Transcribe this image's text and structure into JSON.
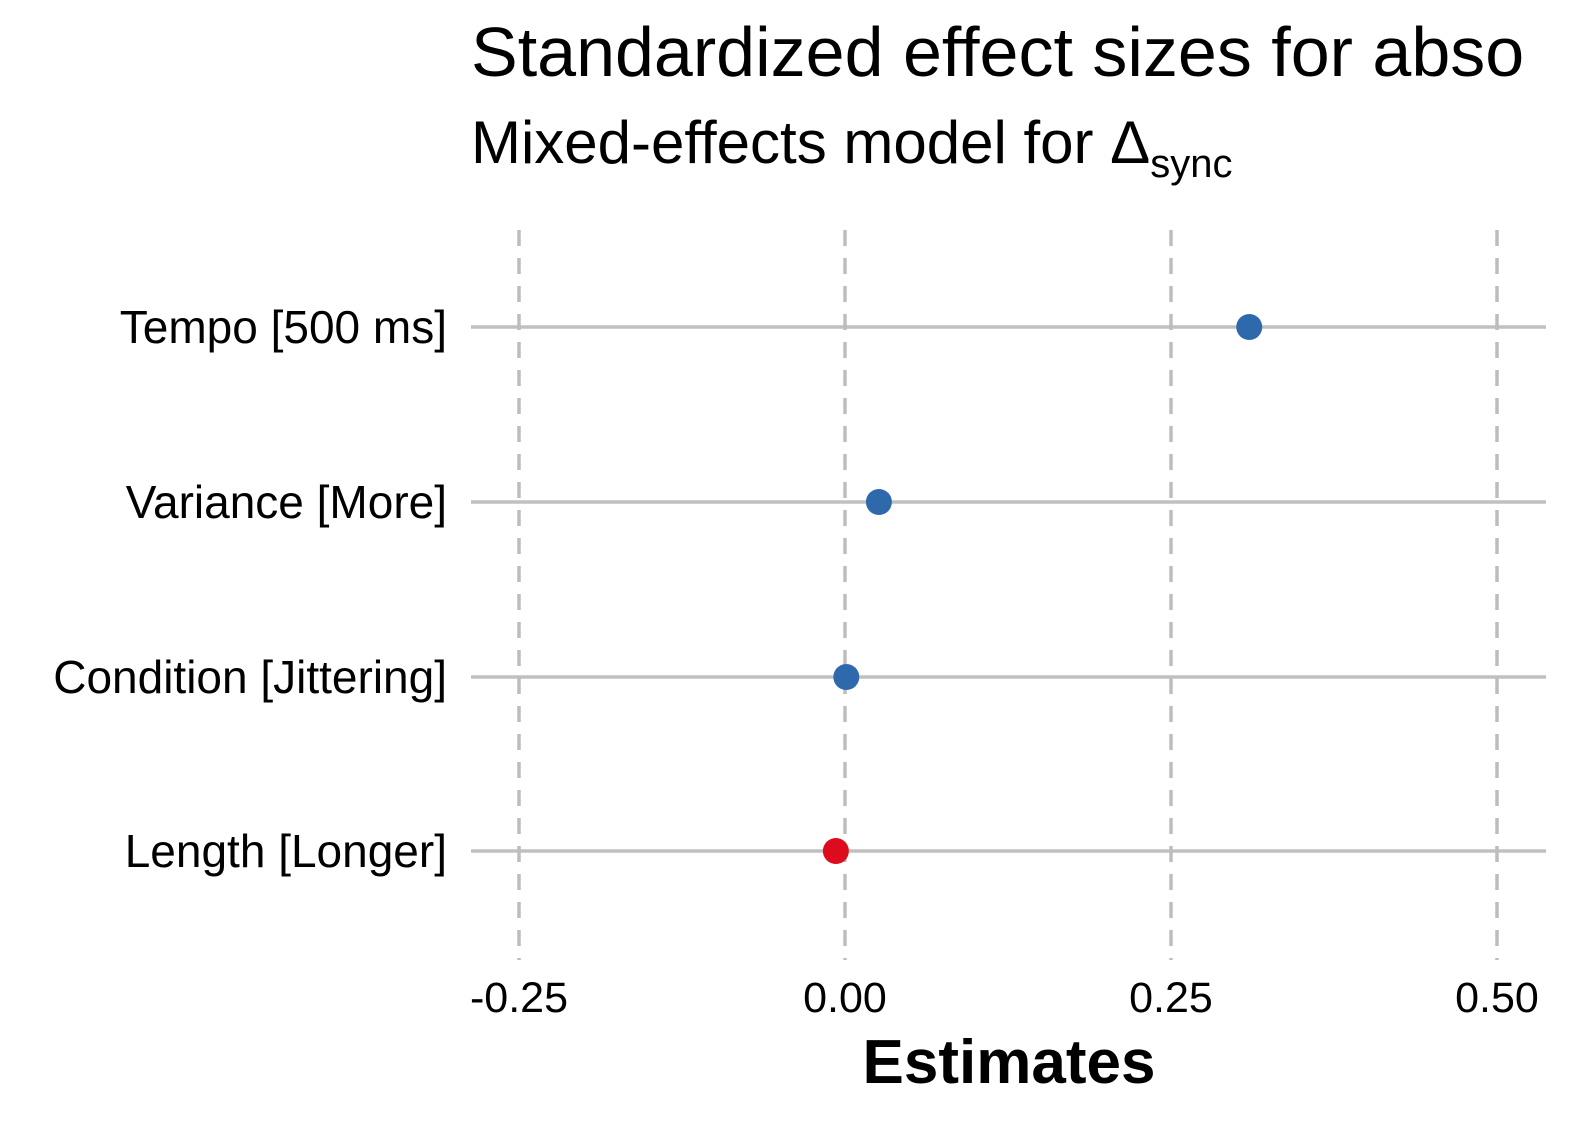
{
  "chart_data": {
    "type": "scatter",
    "title": "Standardized effect sizes for abso",
    "subtitle": {
      "main": "Mixed-effects model for Δ",
      "subscript": "sync"
    },
    "xlabel": "Estimates",
    "ylabel": "",
    "xlim": [
      -0.3,
      0.55
    ],
    "xticks": [
      {
        "value": -0.25,
        "label": "-0.25"
      },
      {
        "value": 0.0,
        "label": "0.00"
      },
      {
        "value": 0.25,
        "label": "0.25"
      },
      {
        "value": 0.5,
        "label": "0.50"
      }
    ],
    "grid": {
      "vertical": "dashed",
      "horizontal": "solid"
    },
    "legend": "none",
    "colors": {
      "positive": "#2e6aab",
      "negative": "#dc0b1d",
      "grid": "#bdbdbd"
    },
    "categories": [
      "Tempo [500 ms]",
      "Variance [More]",
      "Condition [Jittering]",
      "Length [Longer]"
    ],
    "estimates": [
      {
        "term": "Tempo [500 ms]",
        "value": 0.31,
        "sign": "positive"
      },
      {
        "term": "Variance [More]",
        "value": 0.026,
        "sign": "positive"
      },
      {
        "term": "Condition [Jittering]",
        "value": 0.001,
        "sign": "positive"
      },
      {
        "term": "Length [Longer]",
        "value": -0.007,
        "sign": "negative"
      }
    ]
  }
}
